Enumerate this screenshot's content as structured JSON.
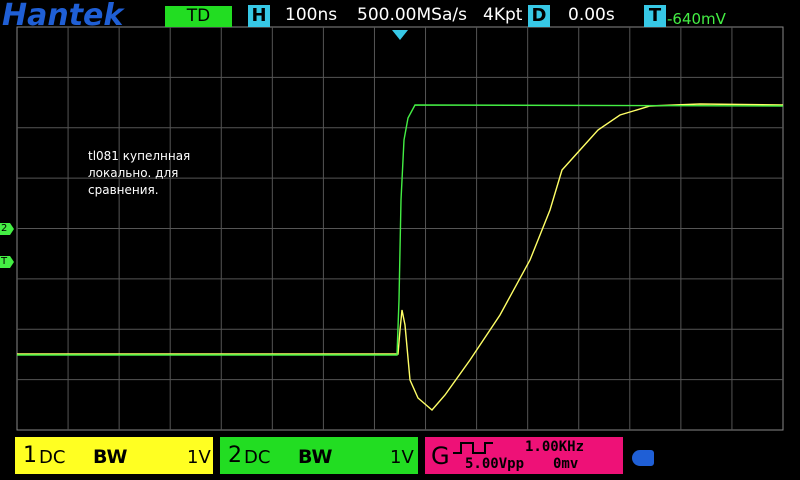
{
  "header": {
    "brand": "Hantek",
    "mode": "TD",
    "timebase_key": "H",
    "timebase": "100ns",
    "sample_rate": "500.00MSa/s",
    "memory": "4Kpt",
    "delay_key": "D",
    "delay": "0.00s",
    "trigger_key": "T",
    "trigger_level": "-640mV"
  },
  "markers": {
    "ch2": "2",
    "trigger": "T"
  },
  "note": [
    "tl081 купелнная",
    "локально. для",
    "сравнения."
  ],
  "channels": [
    {
      "number": "1",
      "coupling": "DC",
      "bw": "BW",
      "scale": "1V"
    },
    {
      "number": "2",
      "coupling": "DC",
      "bw": "BW",
      "scale": "1V"
    }
  ],
  "generator": {
    "key": "G",
    "frequency": "1.00KHz",
    "amplitude": "5.00Vpp",
    "offset": "0mv"
  }
}
